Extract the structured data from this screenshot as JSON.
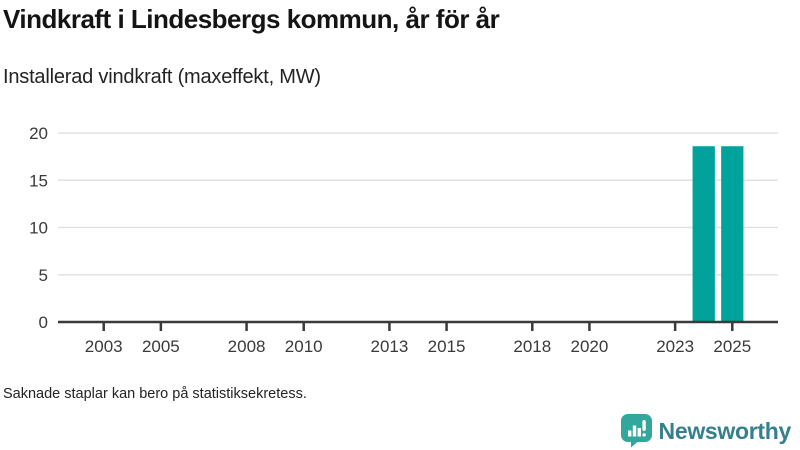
{
  "header": {
    "title": "Vindkraft i Lindesbergs kommun, år för år",
    "subtitle": "Installerad vindkraft (maxeffekt, MW)"
  },
  "chart_data": {
    "type": "bar",
    "title": "Vindkraft i Lindesbergs kommun, år för år",
    "subtitle": "Installerad vindkraft (maxeffekt, MW)",
    "unit": "MW",
    "x": [
      2024,
      2025
    ],
    "values": [
      18.6,
      18.6
    ],
    "xlim": [
      2001.4,
      2026.6
    ],
    "ylim": [
      0,
      20
    ],
    "yticks": [
      0,
      5,
      10,
      15,
      20
    ],
    "xticks": [
      2003,
      2005,
      2008,
      2010,
      2013,
      2015,
      2018,
      2020,
      2023,
      2025
    ],
    "grid": true,
    "legend": false,
    "bar_color": "#00a39b",
    "bar_width_years": 0.78,
    "axis_color": "#3a3a3a",
    "grid_color": "#e2e2e2",
    "tick_label_color": "#3a3a3a"
  },
  "footer": {
    "note": "Saknade staplar kan bero på statistiksekretess."
  },
  "branding": {
    "logo_text": "Newsworthy",
    "logo_icon": "bar-chart-speech-bubble-icon",
    "icon_color": "#33a79d",
    "text_color": "#35808b"
  }
}
